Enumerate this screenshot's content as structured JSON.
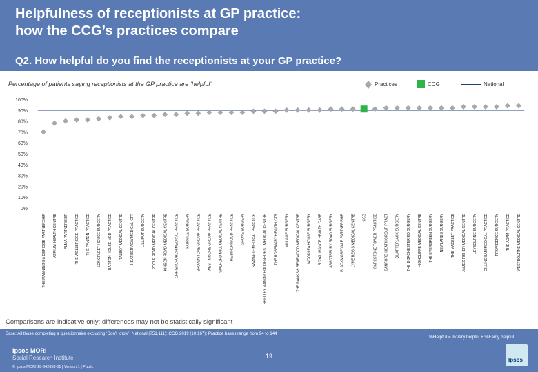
{
  "header": {
    "title": "Helpfulness of receptionists at GP practice:\nhow the CCG’s practices compare",
    "question": "Q2. How helpful do you find the receptionists at your GP practice?"
  },
  "legend": {
    "practices": "Practices",
    "ccg": "CCG",
    "national": "National"
  },
  "colors": {
    "header": "#5a7ab3",
    "practice_marker": "#a8a8a8",
    "ccg_marker": "#2fb34a",
    "national_line": "#1f3f7a"
  },
  "chart_data": {
    "type": "scatter",
    "subtitle": "Percentage of patients saying receptionists at the GP practice are ‘helpful’",
    "ylim": [
      0,
      100
    ],
    "yticks": [
      "0%",
      "10%",
      "20%",
      "30%",
      "40%",
      "50%",
      "60%",
      "70%",
      "80%",
      "90%",
      "100%"
    ],
    "national_value": 90,
    "highlight": "CCG",
    "categories": [
      "THE MANNINGS & DERIDGE PARTNERSHIP",
      "ATRIUM HEALTH CENTRE",
      "ALMA PARTNERSHIP",
      "THE WELLBRIDGE PRACTICE",
      "THE PANTON PRACTICE",
      "LONGFLEET HOUSE SURGERY",
      "BARTON HOUSE MED PRACTICE",
      "TALBOT MEDICAL CENTRE",
      "HEATHERVIEW MEDICAL CTR",
      "LILLIPUT SURGERY",
      "POOLE ROAD MEDICAL CENTRE",
      "KINSON ROAD MEDICAL CENTRE",
      "CHRISTCHURCH MEDICAL PRACTICE",
      "FAIRMILE SURGERY",
      "BROADSTONE GROUP PRACTICE",
      "WEST MOORS GROUP PRACTICE",
      "WALFORD MILL MEDICAL CENTRE",
      "THE BIRCHWOOD PRACTICE",
      "GROVE SURGERY",
      "SWANAGE MEDICAL PRACTICE",
      "SHELLEY MANOR HOLDENHURST MEDICAL CENTRE",
      "THE ROSEMARY HEALTH CTR",
      "VILLAGE SURGERY",
      "THE BANKS & BEARWOOD MEDICAL CENTRE",
      "WOODLEA HOUSE SURGERY",
      "ROYAL MANOR HEALTH CARE",
      "ABBOTSBURY ROAD SURGERY",
      "BLACKMORE VALE PARTNERSHIP",
      "LYME REGIS MEDICAL CENTRE",
      "CCG",
      "PARKSTONE TOWER PRACTICE",
      "CANFORD HEATH GROUP PRACT",
      "QUARTERJACK SURGERY",
      "THE DORCHESTER RD SURGERY",
      "HIGHCLIFFE MEDICAL CENTRE",
      "THE EVERGREEN SURGERY",
      "NEWLANDS SURGERY",
      "THE MADELEY PRACTICE",
      "JAMES FISHER MEDICAL CENTRE",
      "LEYBOURNE SURGERY",
      "GILLINGHAM MEDICAL PRACTICE",
      "PROVIDENCE SURGERY",
      "THE ADAM PRACTICE",
      "WESTBOURNE MEDICAL CENTRE"
    ],
    "values": [
      70,
      78,
      80,
      81,
      81,
      82,
      83,
      84,
      84,
      85,
      85,
      86,
      86,
      87,
      87,
      88,
      88,
      88,
      88,
      89,
      89,
      89,
      90,
      90,
      90,
      90,
      91,
      91,
      91,
      91,
      91,
      92,
      92,
      92,
      92,
      92,
      92,
      92,
      93,
      93,
      93,
      93,
      94,
      94
    ]
  },
  "notes": {
    "comparison": "Comparisons are indicative only: differences may not be statistically significant",
    "base": "Base: All those completing a questionnaire excluding ‘Don’t know’: National (751,111); CCG 2019 (10,167); Practice bases range from 94 to 144",
    "definition": "%Helpful = %Very helpful + %Fairly helpful",
    "page_number": "19"
  },
  "brand": {
    "name": "Ipsos MORI",
    "tagline": "Social Research Institute",
    "copyright": "© Ipsos MORI    18-042653-01 | Version 1 | Public",
    "logo_text": "Ipsos"
  }
}
